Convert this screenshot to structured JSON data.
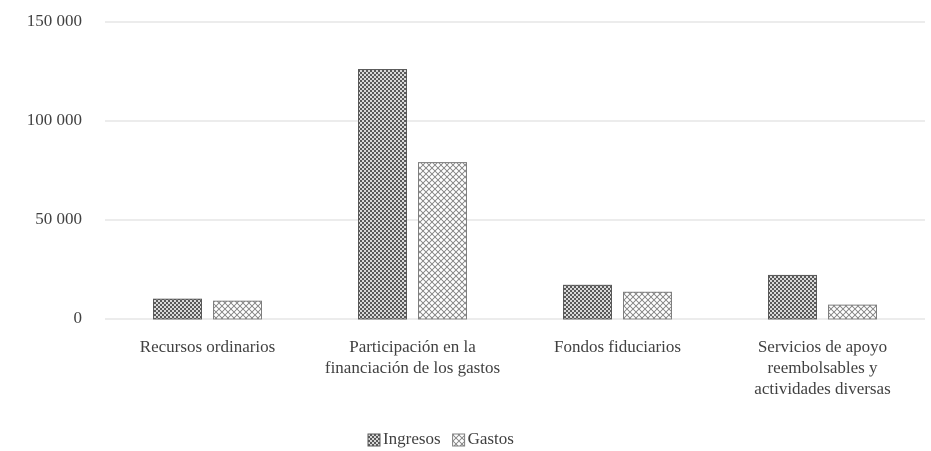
{
  "chart_data": {
    "type": "bar",
    "categories": [
      "Recursos ordinarios",
      "Participación en la financiación de los gastos",
      "Fondos fiduciarios",
      "Servicios de apoyo reembolsables y actividades diversas"
    ],
    "series": [
      {
        "name": "Ingresos",
        "color": "#595959",
        "values": [
          10000,
          126000,
          17000,
          22000
        ]
      },
      {
        "name": "Gastos",
        "color": "#7f7f7f",
        "values": [
          9000,
          79000,
          13500,
          7000
        ]
      }
    ],
    "ylim": [
      0,
      150000
    ],
    "yticks": [
      0,
      {
        "value": 50000,
        "label": "50 000"
      },
      {
        "value": 100000,
        "label": "100 000"
      },
      {
        "value": 150000,
        "label": "150 000"
      }
    ],
    "grid": true,
    "legend": "bottom"
  }
}
